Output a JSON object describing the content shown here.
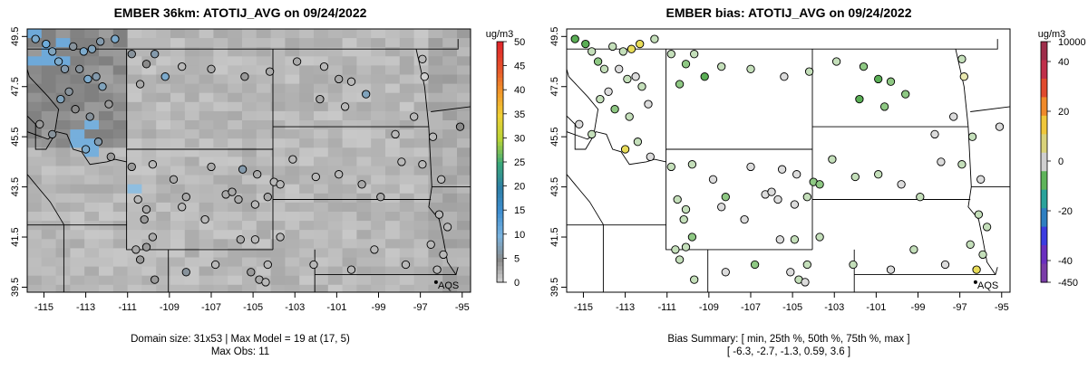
{
  "left_panel": {
    "title": "EMBER 36km: ATOTIJ_AVG on 09/24/2022",
    "caption_line1": "Domain size: 31x53 | Max Model = 19 at (17, 5)",
    "caption_line2": "Max Obs: 11",
    "unit": "ug/m3",
    "colorbar_ticks": [
      "50",
      "45",
      "40",
      "35",
      "30",
      "25",
      "20",
      "15",
      "10",
      "5",
      "0"
    ],
    "legend_marker_label": "AQS"
  },
  "right_panel": {
    "title": "EMBER bias: ATOTIJ_AVG on 09/24/2022",
    "caption_line1": "Bias Summary: [ min, 25th %, 50th %, 75th %, max ]",
    "caption_line2": "[ -6.3,   -2.7,   -1.3,   0.59,   3.6 ]",
    "unit": "ug/m3",
    "colorbar_ticks": [
      "10000",
      "40",
      "20",
      "0",
      "-20",
      "-40",
      "-450"
    ],
    "legend_marker_label": "AQS"
  },
  "chart_data": [
    {
      "type": "heatmap",
      "title": "EMBER 36km: ATOTIJ_AVG on 09/24/2022",
      "x_ticks": [
        "-115",
        "-113",
        "-111",
        "-109",
        "-107",
        "-105",
        "-103",
        "-101",
        "-99",
        "-97",
        "-95"
      ],
      "y_ticks": [
        "39.5",
        "41.5",
        "43.5",
        "45.5",
        "47.5",
        "49.5"
      ],
      "xlim": [
        -115.8,
        -94.6
      ],
      "ylim": [
        39.3,
        49.8
      ],
      "colorbar_range": [
        0,
        50
      ],
      "colorbar_ticks": [
        0,
        5,
        10,
        15,
        20,
        25,
        30,
        35,
        40,
        45,
        50
      ],
      "colors": {
        "low": "#d9d9d9",
        "mid": "#8a8a8a",
        "blue": "#4f9fd6",
        "marker_edge": "#000000"
      },
      "stations": [
        [
          -115.4,
          49.4,
          9
        ],
        [
          -114.9,
          49.2,
          11
        ],
        [
          -114.6,
          48.9,
          8
        ],
        [
          -114.3,
          48.5,
          9
        ],
        [
          -114.0,
          48.2,
          7
        ],
        [
          -113.6,
          49.1,
          6
        ],
        [
          -113.1,
          48.9,
          9
        ],
        [
          -112.7,
          49.0,
          8
        ],
        [
          -112.3,
          49.3,
          7
        ],
        [
          -111.6,
          49.4,
          9
        ],
        [
          -110.8,
          48.8,
          6
        ],
        [
          -110.1,
          48.4,
          5
        ],
        [
          -109.7,
          48.8,
          7
        ],
        [
          -113.3,
          48.2,
          6
        ],
        [
          -112.9,
          47.8,
          9
        ],
        [
          -112.5,
          47.9,
          7
        ],
        [
          -112.2,
          47.5,
          8
        ],
        [
          -113.8,
          47.3,
          6
        ],
        [
          -114.2,
          47.0,
          8
        ],
        [
          -113.5,
          46.6,
          5
        ],
        [
          -112.8,
          46.3,
          6
        ],
        [
          -111.9,
          46.8,
          4
        ],
        [
          -110.4,
          47.6,
          3
        ],
        [
          -109.2,
          47.9,
          9
        ],
        [
          -108.4,
          48.3,
          2
        ],
        [
          -107.0,
          48.2,
          3
        ],
        [
          -105.4,
          47.9,
          4
        ],
        [
          -104.2,
          48.1,
          3
        ],
        [
          -102.9,
          48.5,
          3
        ],
        [
          -101.6,
          48.3,
          2
        ],
        [
          -100.9,
          47.8,
          3
        ],
        [
          -100.3,
          47.7,
          2
        ],
        [
          -99.6,
          47.2,
          8
        ],
        [
          -101.8,
          47.0,
          3
        ],
        [
          -100.6,
          46.7,
          2
        ],
        [
          -96.9,
          48.6,
          2
        ],
        [
          -96.8,
          47.9,
          0.5
        ],
        [
          -115.2,
          46.0,
          4
        ],
        [
          -114.6,
          45.6,
          6
        ],
        [
          -113.0,
          45.0,
          9
        ],
        [
          -112.4,
          45.3,
          7
        ],
        [
          -111.8,
          44.7,
          4
        ],
        [
          -110.8,
          44.3,
          4
        ],
        [
          -109.8,
          44.4,
          2
        ],
        [
          -108.8,
          43.8,
          3
        ],
        [
          -108.2,
          43.1,
          3
        ],
        [
          -107.0,
          44.3,
          3
        ],
        [
          -105.5,
          44.2,
          7
        ],
        [
          -104.8,
          44.0,
          3
        ],
        [
          -104.0,
          43.7,
          2
        ],
        [
          -106.3,
          43.2,
          3
        ],
        [
          -106.0,
          43.3,
          3
        ],
        [
          -105.7,
          43.0,
          3
        ],
        [
          -104.9,
          42.8,
          2
        ],
        [
          -104.3,
          43.1,
          3
        ],
        [
          -103.7,
          43.6,
          2
        ],
        [
          -103.1,
          44.6,
          2
        ],
        [
          -102.0,
          43.9,
          2
        ],
        [
          -100.9,
          44.0,
          2
        ],
        [
          -99.8,
          43.6,
          3
        ],
        [
          -98.9,
          43.1,
          3
        ],
        [
          -97.9,
          44.5,
          2
        ],
        [
          -96.9,
          44.4,
          2
        ],
        [
          -96.0,
          43.8,
          2
        ],
        [
          -95.1,
          45.9,
          5
        ],
        [
          -96.4,
          45.5,
          2
        ],
        [
          -98.2,
          45.6,
          2
        ],
        [
          -97.3,
          46.3,
          2
        ],
        [
          -110.5,
          43.0,
          2
        ],
        [
          -110.1,
          42.6,
          3
        ],
        [
          -110.2,
          42.2,
          4
        ],
        [
          -109.8,
          41.5,
          3
        ],
        [
          -110.1,
          41.1,
          4
        ],
        [
          -110.6,
          41.0,
          3
        ],
        [
          -110.4,
          40.6,
          4
        ],
        [
          -108.4,
          42.7,
          2
        ],
        [
          -107.3,
          42.2,
          2
        ],
        [
          -105.6,
          41.4,
          3
        ],
        [
          -104.9,
          41.4,
          2
        ],
        [
          -103.7,
          41.5,
          2
        ],
        [
          -104.3,
          40.4,
          2
        ],
        [
          -105.1,
          40.1,
          4
        ],
        [
          -104.7,
          39.8,
          3
        ],
        [
          -104.4,
          39.7,
          2
        ],
        [
          -106.8,
          40.4,
          2
        ],
        [
          -108.2,
          40.1,
          6
        ],
        [
          -109.7,
          39.8,
          4
        ],
        [
          -102.1,
          40.4,
          2
        ],
        [
          -100.3,
          40.2,
          2
        ],
        [
          -99.2,
          41.0,
          2
        ],
        [
          -97.7,
          40.4,
          2
        ],
        [
          -96.5,
          41.2,
          2
        ],
        [
          -95.9,
          40.8,
          2
        ],
        [
          -95.7,
          41.9,
          2
        ],
        [
          -96.1,
          42.4,
          2
        ],
        [
          -96.2,
          40.2,
          2
        ]
      ]
    },
    {
      "type": "scatter",
      "title": "EMBER bias: ATOTIJ_AVG on 09/24/2022",
      "x_ticks": [
        "-115",
        "-113",
        "-111",
        "-109",
        "-107",
        "-105",
        "-103",
        "-101",
        "-99",
        "-97",
        "-95"
      ],
      "y_ticks": [
        "39.5",
        "41.5",
        "43.5",
        "45.5",
        "47.5",
        "49.5"
      ],
      "xlim": [
        -115.8,
        -94.6
      ],
      "ylim": [
        39.3,
        49.8
      ],
      "colorbar_ticks": [
        10000,
        40,
        20,
        0,
        -20,
        -40,
        -450
      ],
      "bias_summary": {
        "min": -6.3,
        "p25": -2.7,
        "p50": -1.3,
        "p75": 0.59,
        "max": 3.6
      },
      "colors": {
        "zero": "#dcdcdc",
        "negative": "#5fb45a",
        "positive": "#e5d94a"
      },
      "stations": [
        [
          -115.4,
          49.4,
          -5
        ],
        [
          -114.9,
          49.2,
          -6
        ],
        [
          -114.6,
          48.9,
          -2
        ],
        [
          -114.3,
          48.5,
          -4
        ],
        [
          -114.0,
          48.2,
          -1
        ],
        [
          -113.6,
          49.1,
          -1
        ],
        [
          -113.1,
          48.9,
          -2
        ],
        [
          -112.7,
          49.0,
          3
        ],
        [
          -112.3,
          49.2,
          3.5
        ],
        [
          -111.6,
          49.4,
          -2
        ],
        [
          -110.8,
          48.8,
          -1
        ],
        [
          -110.1,
          48.4,
          -4
        ],
        [
          -109.7,
          48.8,
          -1
        ],
        [
          -113.3,
          48.2,
          -0.5
        ],
        [
          -112.9,
          47.8,
          -1
        ],
        [
          -112.5,
          47.9,
          0
        ],
        [
          -112.2,
          47.5,
          -1
        ],
        [
          -113.8,
          47.3,
          -0.5
        ],
        [
          -114.2,
          47.0,
          -1
        ],
        [
          -113.5,
          46.6,
          -3
        ],
        [
          -112.8,
          46.3,
          -1
        ],
        [
          -111.9,
          46.8,
          0
        ],
        [
          -110.4,
          47.6,
          -3
        ],
        [
          -109.2,
          47.9,
          -5
        ],
        [
          -108.4,
          48.3,
          -2
        ],
        [
          -107.0,
          48.2,
          -1
        ],
        [
          -105.4,
          47.9,
          -0.5
        ],
        [
          -104.2,
          48.1,
          -1
        ],
        [
          -102.9,
          48.5,
          -1
        ],
        [
          -101.6,
          48.3,
          -3
        ],
        [
          -100.9,
          47.8,
          -5
        ],
        [
          -100.3,
          47.7,
          -4
        ],
        [
          -99.6,
          47.2,
          -4
        ],
        [
          -101.8,
          47.0,
          -6
        ],
        [
          -100.6,
          46.7,
          -3
        ],
        [
          -96.9,
          48.6,
          -1
        ],
        [
          -96.8,
          47.9,
          1
        ],
        [
          -115.2,
          46.0,
          0
        ],
        [
          -114.6,
          45.6,
          -1
        ],
        [
          -113.0,
          45.0,
          3.5
        ],
        [
          -112.4,
          45.3,
          -1
        ],
        [
          -111.8,
          44.7,
          -0.5
        ],
        [
          -110.8,
          44.3,
          -1
        ],
        [
          -109.8,
          44.4,
          -1
        ],
        [
          -108.8,
          43.8,
          -0.5
        ],
        [
          -108.2,
          43.1,
          -3
        ],
        [
          -107.0,
          44.3,
          -0.5
        ],
        [
          -105.5,
          44.2,
          -0.5
        ],
        [
          -104.8,
          44.0,
          0.5
        ],
        [
          -104.0,
          43.7,
          -4
        ],
        [
          -106.3,
          43.2,
          0
        ],
        [
          -106.0,
          43.3,
          0
        ],
        [
          -105.7,
          43.0,
          0
        ],
        [
          -104.9,
          42.8,
          0
        ],
        [
          -104.3,
          43.1,
          -1
        ],
        [
          -103.7,
          43.6,
          -4
        ],
        [
          -103.1,
          44.6,
          -1
        ],
        [
          -102.0,
          43.9,
          -1
        ],
        [
          -100.9,
          44.0,
          -2
        ],
        [
          -99.8,
          43.6,
          -0.5
        ],
        [
          -98.9,
          43.1,
          -1
        ],
        [
          -97.9,
          44.5,
          -0.5
        ],
        [
          -96.9,
          44.4,
          -2
        ],
        [
          -96.0,
          43.8,
          -0.5
        ],
        [
          -95.1,
          45.9,
          0
        ],
        [
          -96.4,
          45.5,
          -1
        ],
        [
          -98.2,
          45.6,
          -0.5
        ],
        [
          -97.3,
          46.3,
          -0.5
        ],
        [
          -110.5,
          43.0,
          -1
        ],
        [
          -110.1,
          42.6,
          -1
        ],
        [
          -110.2,
          42.2,
          -2
        ],
        [
          -109.8,
          41.5,
          -3
        ],
        [
          -110.1,
          41.1,
          -2
        ],
        [
          -110.6,
          41.0,
          -1
        ],
        [
          -110.4,
          40.6,
          -1
        ],
        [
          -108.4,
          42.7,
          -0.5
        ],
        [
          -107.3,
          42.2,
          -0.5
        ],
        [
          -105.6,
          41.4,
          -0.5
        ],
        [
          -104.9,
          41.4,
          -1
        ],
        [
          -103.7,
          41.5,
          -1
        ],
        [
          -104.3,
          40.4,
          -1
        ],
        [
          -105.1,
          40.1,
          -0.5
        ],
        [
          -104.7,
          39.8,
          -1
        ],
        [
          -104.4,
          39.7,
          -0.5
        ],
        [
          -106.8,
          40.4,
          -3
        ],
        [
          -108.2,
          40.1,
          -0.5
        ],
        [
          -109.7,
          39.8,
          -1
        ],
        [
          -102.1,
          40.4,
          -1
        ],
        [
          -100.3,
          40.2,
          -0.5
        ],
        [
          -99.2,
          41.0,
          -1
        ],
        [
          -97.7,
          40.4,
          -0.5
        ],
        [
          -96.5,
          41.2,
          -2
        ],
        [
          -95.9,
          40.8,
          -1
        ],
        [
          -95.7,
          41.9,
          -1
        ],
        [
          -96.1,
          42.4,
          -1
        ],
        [
          -96.2,
          40.2,
          3
        ]
      ]
    }
  ]
}
